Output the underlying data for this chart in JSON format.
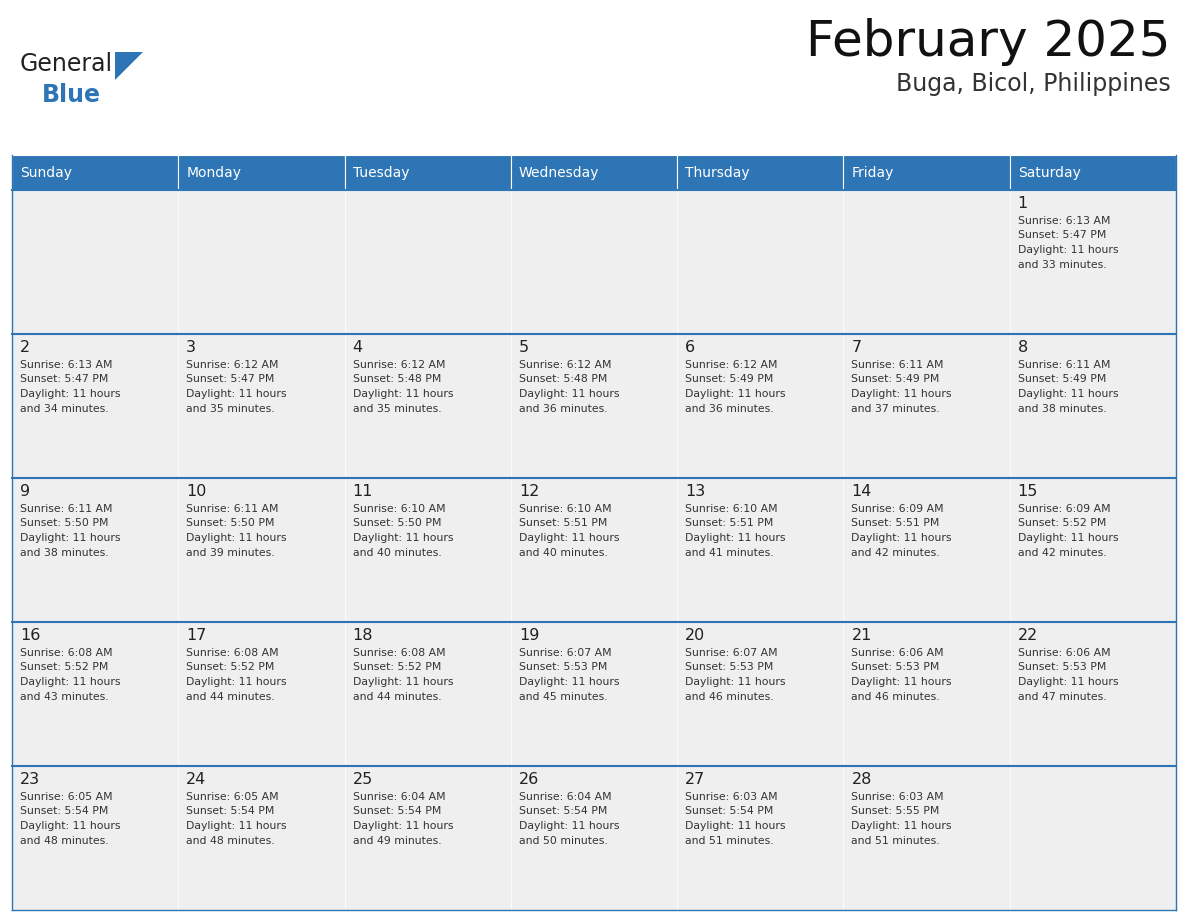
{
  "title": "February 2025",
  "subtitle": "Buga, Bicol, Philippines",
  "header_color": "#2E75B6",
  "header_text_color": "#FFFFFF",
  "background_color": "#FFFFFF",
  "cell_bg_color": "#EFEFEF",
  "border_color": "#2E75B6",
  "text_color": "#333333",
  "day_names": [
    "Sunday",
    "Monday",
    "Tuesday",
    "Wednesday",
    "Thursday",
    "Friday",
    "Saturday"
  ],
  "days": [
    {
      "day": 1,
      "col": 6,
      "row": 0,
      "sunrise": "6:13 AM",
      "sunset": "5:47 PM",
      "daylight_hours": 11,
      "daylight_minutes": 33
    },
    {
      "day": 2,
      "col": 0,
      "row": 1,
      "sunrise": "6:13 AM",
      "sunset": "5:47 PM",
      "daylight_hours": 11,
      "daylight_minutes": 34
    },
    {
      "day": 3,
      "col": 1,
      "row": 1,
      "sunrise": "6:12 AM",
      "sunset": "5:47 PM",
      "daylight_hours": 11,
      "daylight_minutes": 35
    },
    {
      "day": 4,
      "col": 2,
      "row": 1,
      "sunrise": "6:12 AM",
      "sunset": "5:48 PM",
      "daylight_hours": 11,
      "daylight_minutes": 35
    },
    {
      "day": 5,
      "col": 3,
      "row": 1,
      "sunrise": "6:12 AM",
      "sunset": "5:48 PM",
      "daylight_hours": 11,
      "daylight_minutes": 36
    },
    {
      "day": 6,
      "col": 4,
      "row": 1,
      "sunrise": "6:12 AM",
      "sunset": "5:49 PM",
      "daylight_hours": 11,
      "daylight_minutes": 36
    },
    {
      "day": 7,
      "col": 5,
      "row": 1,
      "sunrise": "6:11 AM",
      "sunset": "5:49 PM",
      "daylight_hours": 11,
      "daylight_minutes": 37
    },
    {
      "day": 8,
      "col": 6,
      "row": 1,
      "sunrise": "6:11 AM",
      "sunset": "5:49 PM",
      "daylight_hours": 11,
      "daylight_minutes": 38
    },
    {
      "day": 9,
      "col": 0,
      "row": 2,
      "sunrise": "6:11 AM",
      "sunset": "5:50 PM",
      "daylight_hours": 11,
      "daylight_minutes": 38
    },
    {
      "day": 10,
      "col": 1,
      "row": 2,
      "sunrise": "6:11 AM",
      "sunset": "5:50 PM",
      "daylight_hours": 11,
      "daylight_minutes": 39
    },
    {
      "day": 11,
      "col": 2,
      "row": 2,
      "sunrise": "6:10 AM",
      "sunset": "5:50 PM",
      "daylight_hours": 11,
      "daylight_minutes": 40
    },
    {
      "day": 12,
      "col": 3,
      "row": 2,
      "sunrise": "6:10 AM",
      "sunset": "5:51 PM",
      "daylight_hours": 11,
      "daylight_minutes": 40
    },
    {
      "day": 13,
      "col": 4,
      "row": 2,
      "sunrise": "6:10 AM",
      "sunset": "5:51 PM",
      "daylight_hours": 11,
      "daylight_minutes": 41
    },
    {
      "day": 14,
      "col": 5,
      "row": 2,
      "sunrise": "6:09 AM",
      "sunset": "5:51 PM",
      "daylight_hours": 11,
      "daylight_minutes": 42
    },
    {
      "day": 15,
      "col": 6,
      "row": 2,
      "sunrise": "6:09 AM",
      "sunset": "5:52 PM",
      "daylight_hours": 11,
      "daylight_minutes": 42
    },
    {
      "day": 16,
      "col": 0,
      "row": 3,
      "sunrise": "6:08 AM",
      "sunset": "5:52 PM",
      "daylight_hours": 11,
      "daylight_minutes": 43
    },
    {
      "day": 17,
      "col": 1,
      "row": 3,
      "sunrise": "6:08 AM",
      "sunset": "5:52 PM",
      "daylight_hours": 11,
      "daylight_minutes": 44
    },
    {
      "day": 18,
      "col": 2,
      "row": 3,
      "sunrise": "6:08 AM",
      "sunset": "5:52 PM",
      "daylight_hours": 11,
      "daylight_minutes": 44
    },
    {
      "day": 19,
      "col": 3,
      "row": 3,
      "sunrise": "6:07 AM",
      "sunset": "5:53 PM",
      "daylight_hours": 11,
      "daylight_minutes": 45
    },
    {
      "day": 20,
      "col": 4,
      "row": 3,
      "sunrise": "6:07 AM",
      "sunset": "5:53 PM",
      "daylight_hours": 11,
      "daylight_minutes": 46
    },
    {
      "day": 21,
      "col": 5,
      "row": 3,
      "sunrise": "6:06 AM",
      "sunset": "5:53 PM",
      "daylight_hours": 11,
      "daylight_minutes": 46
    },
    {
      "day": 22,
      "col": 6,
      "row": 3,
      "sunrise": "6:06 AM",
      "sunset": "5:53 PM",
      "daylight_hours": 11,
      "daylight_minutes": 47
    },
    {
      "day": 23,
      "col": 0,
      "row": 4,
      "sunrise": "6:05 AM",
      "sunset": "5:54 PM",
      "daylight_hours": 11,
      "daylight_minutes": 48
    },
    {
      "day": 24,
      "col": 1,
      "row": 4,
      "sunrise": "6:05 AM",
      "sunset": "5:54 PM",
      "daylight_hours": 11,
      "daylight_minutes": 48
    },
    {
      "day": 25,
      "col": 2,
      "row": 4,
      "sunrise": "6:04 AM",
      "sunset": "5:54 PM",
      "daylight_hours": 11,
      "daylight_minutes": 49
    },
    {
      "day": 26,
      "col": 3,
      "row": 4,
      "sunrise": "6:04 AM",
      "sunset": "5:54 PM",
      "daylight_hours": 11,
      "daylight_minutes": 50
    },
    {
      "day": 27,
      "col": 4,
      "row": 4,
      "sunrise": "6:03 AM",
      "sunset": "5:54 PM",
      "daylight_hours": 11,
      "daylight_minutes": 51
    },
    {
      "day": 28,
      "col": 5,
      "row": 4,
      "sunrise": "6:03 AM",
      "sunset": "5:55 PM",
      "daylight_hours": 11,
      "daylight_minutes": 51
    }
  ],
  "num_rows": 5,
  "num_cols": 7
}
